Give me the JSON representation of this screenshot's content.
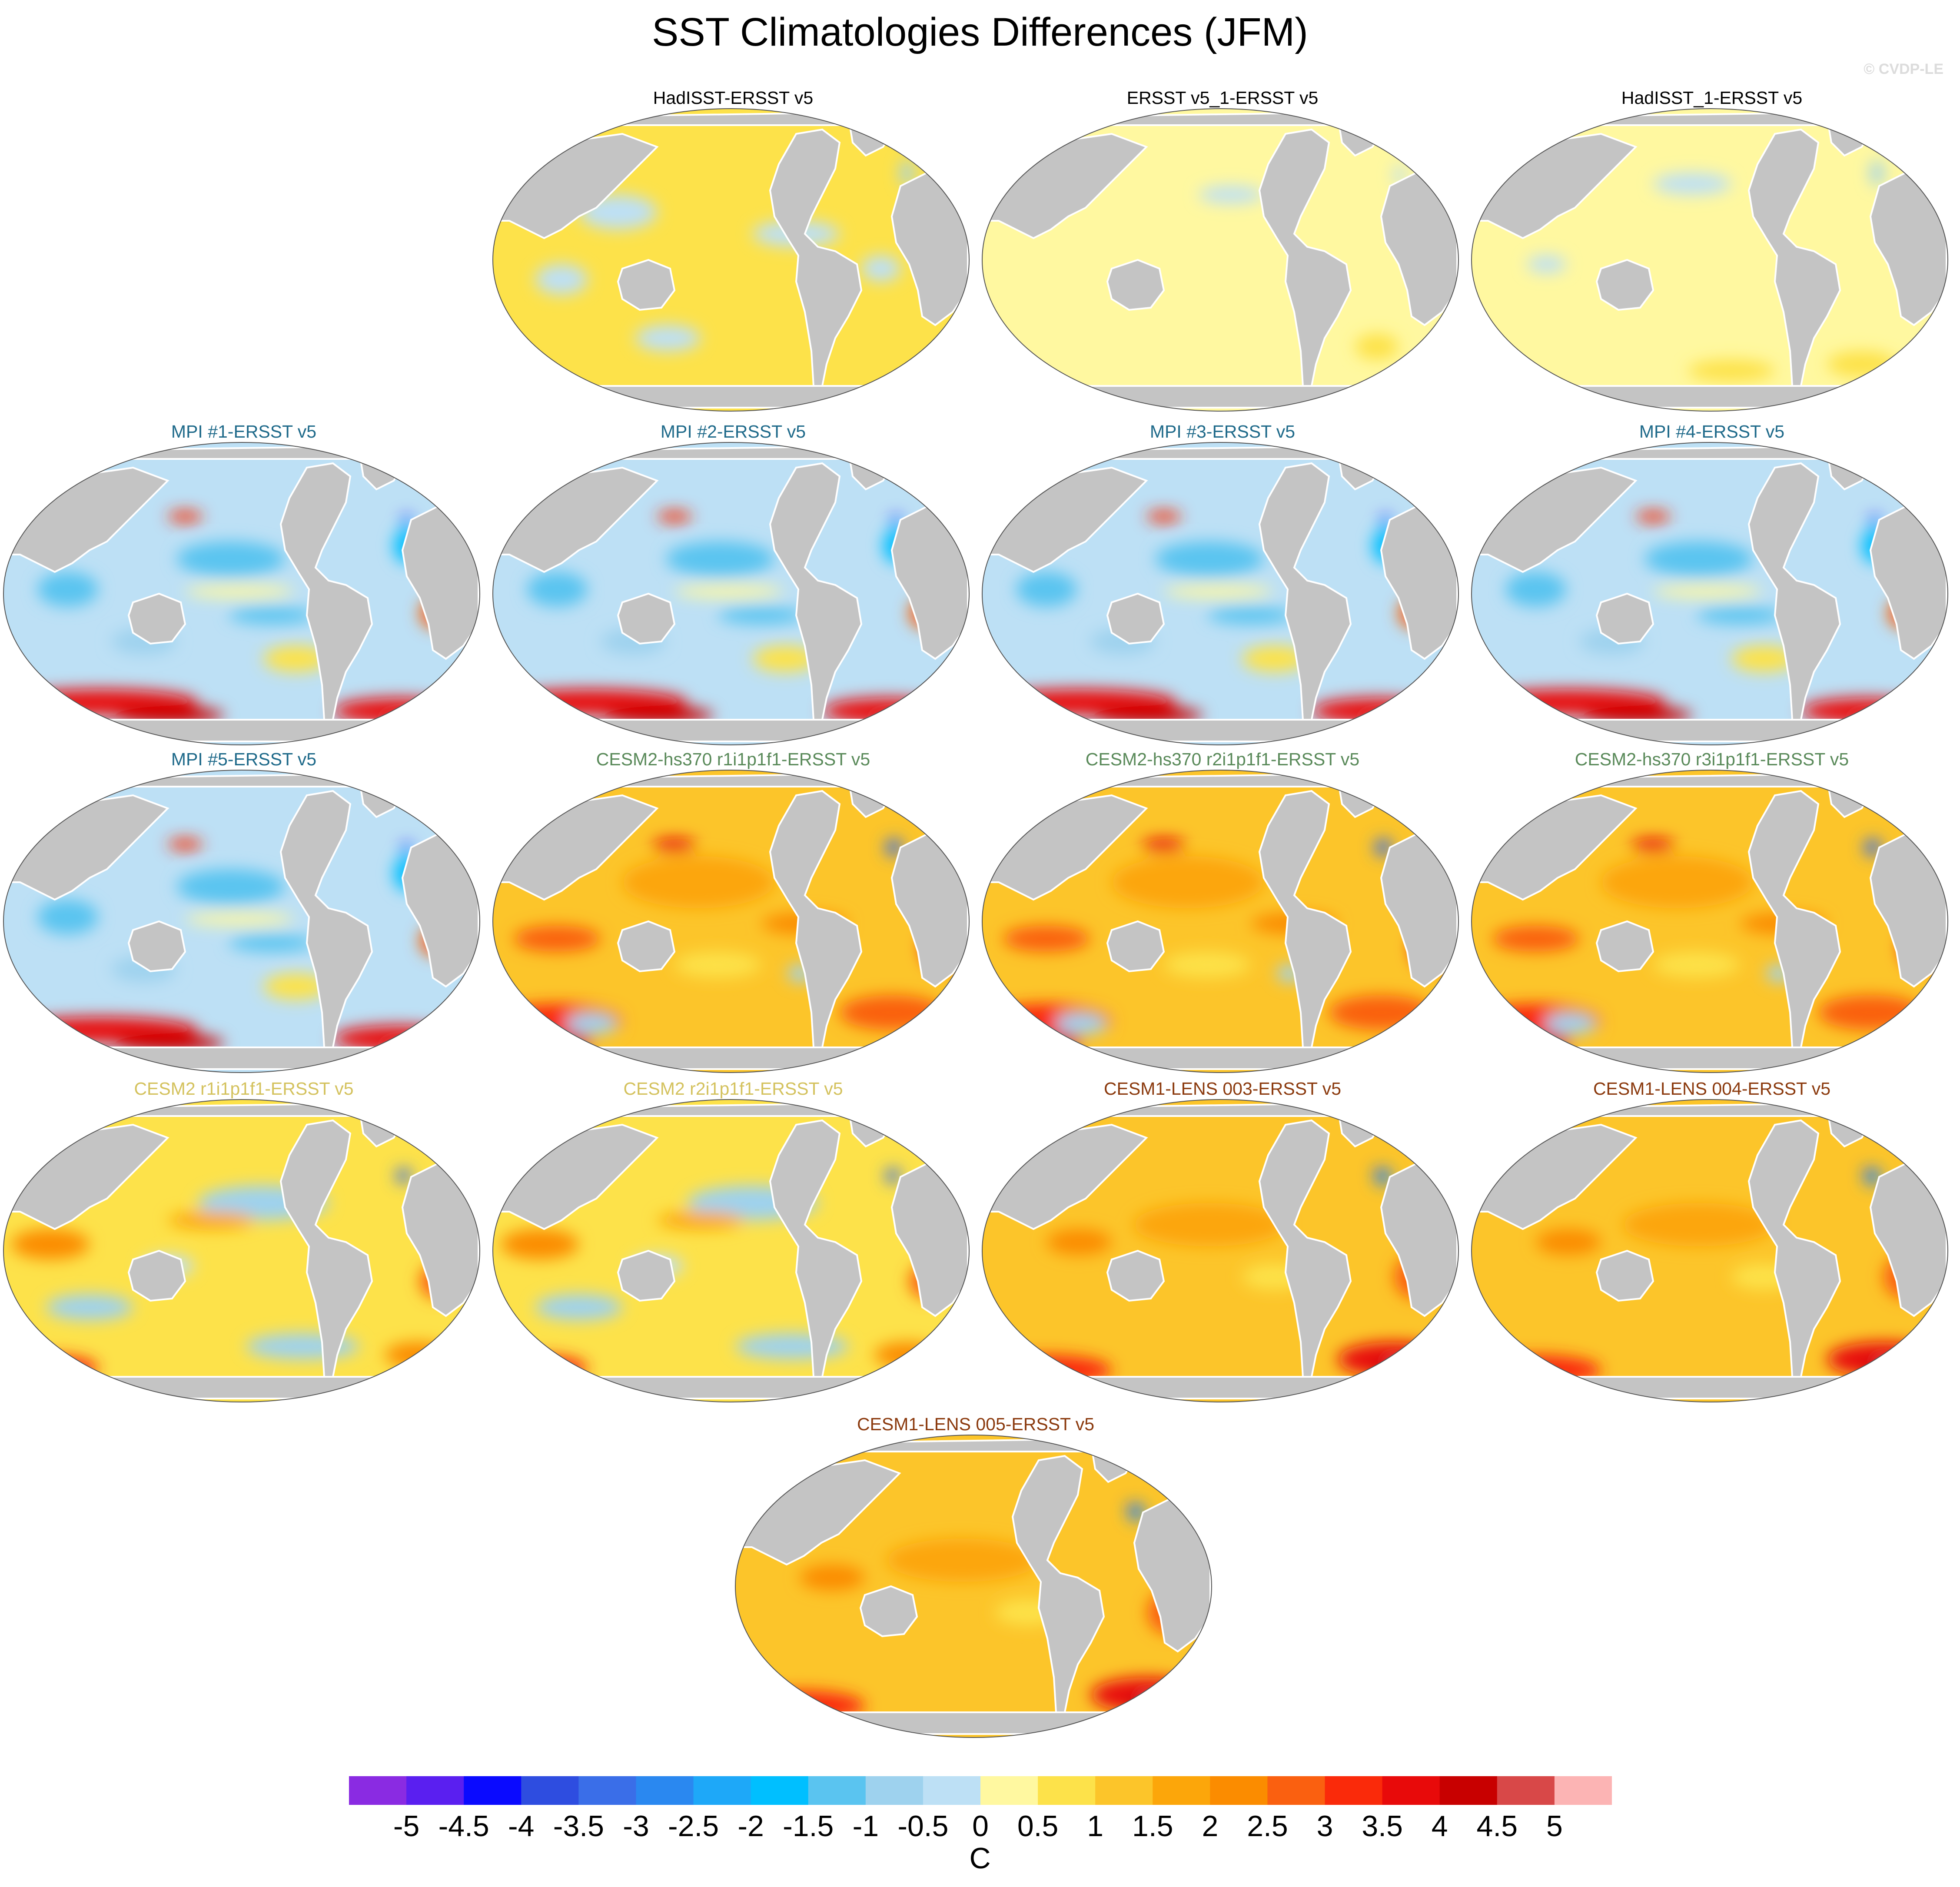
{
  "title": "SST Climatologies Differences (JFM)",
  "watermark": "© CVDP-LE",
  "panels": [
    {
      "title": "HadISST-ERSST v5",
      "title_color": "#000000",
      "pattern": "obs1"
    },
    {
      "title": "ERSST v5_1-ERSST v5",
      "title_color": "#000000",
      "pattern": "obs2"
    },
    {
      "title": "HadISST_1-ERSST v5",
      "title_color": "#000000",
      "pattern": "obs3"
    },
    {
      "title": "MPI #1-ERSST v5",
      "title_color": "#1f6a8a",
      "pattern": "mpi"
    },
    {
      "title": "MPI #2-ERSST v5",
      "title_color": "#1f6a8a",
      "pattern": "mpi"
    },
    {
      "title": "MPI #3-ERSST v5",
      "title_color": "#1f6a8a",
      "pattern": "mpi"
    },
    {
      "title": "MPI #4-ERSST v5",
      "title_color": "#1f6a8a",
      "pattern": "mpi"
    },
    {
      "title": "MPI #5-ERSST v5",
      "title_color": "#1f6a8a",
      "pattern": "mpi"
    },
    {
      "title": "CESM2-hs370 r1i1p1f1-ERSST v5",
      "title_color": "#5a8a5a",
      "pattern": "hs370"
    },
    {
      "title": "CESM2-hs370 r2i1p1f1-ERSST v5",
      "title_color": "#5a8a5a",
      "pattern": "hs370"
    },
    {
      "title": "CESM2-hs370 r3i1p1f1-ERSST v5",
      "title_color": "#5a8a5a",
      "pattern": "hs370"
    },
    {
      "title": "CESM2 r1i1p1f1-ERSST v5",
      "title_color": "#d4c25e",
      "pattern": "cesm2"
    },
    {
      "title": "CESM2 r2i1p1f1-ERSST v5",
      "title_color": "#d4c25e",
      "pattern": "cesm2"
    },
    {
      "title": "CESM1-LENS 003-ERSST v5",
      "title_color": "#8b3a0e",
      "pattern": "lens"
    },
    {
      "title": "CESM1-LENS 004-ERSST v5",
      "title_color": "#8b3a0e",
      "pattern": "lens"
    },
    {
      "title": "CESM1-LENS 005-ERSST v5",
      "title_color": "#8b3a0e",
      "pattern": "lens"
    }
  ],
  "colorbar": {
    "units": "C",
    "labels": [
      "-5",
      "-4.5",
      "-4",
      "-3.5",
      "-3",
      "-2.5",
      "-2",
      "-1.5",
      "-1",
      "-0.5",
      "0",
      "0.5",
      "1",
      "1.5",
      "2",
      "2.5",
      "3",
      "3.5",
      "4",
      "4.5",
      "5"
    ],
    "colors": [
      "#8a2be2",
      "#5a1ff0",
      "#0a0aff",
      "#2e4de0",
      "#3a6ee8",
      "#2a88f0",
      "#1ea8f8",
      "#00bfff",
      "#5ac4f0",
      "#9ed2ee",
      "#bde0f5",
      "#fff8a0",
      "#fde24a",
      "#fcc52a",
      "#fca60a",
      "#fb8c00",
      "#fa6010",
      "#fa2a0a",
      "#e80a0a",
      "#c80000",
      "#d84848",
      "#fcb4b4"
    ]
  }
}
